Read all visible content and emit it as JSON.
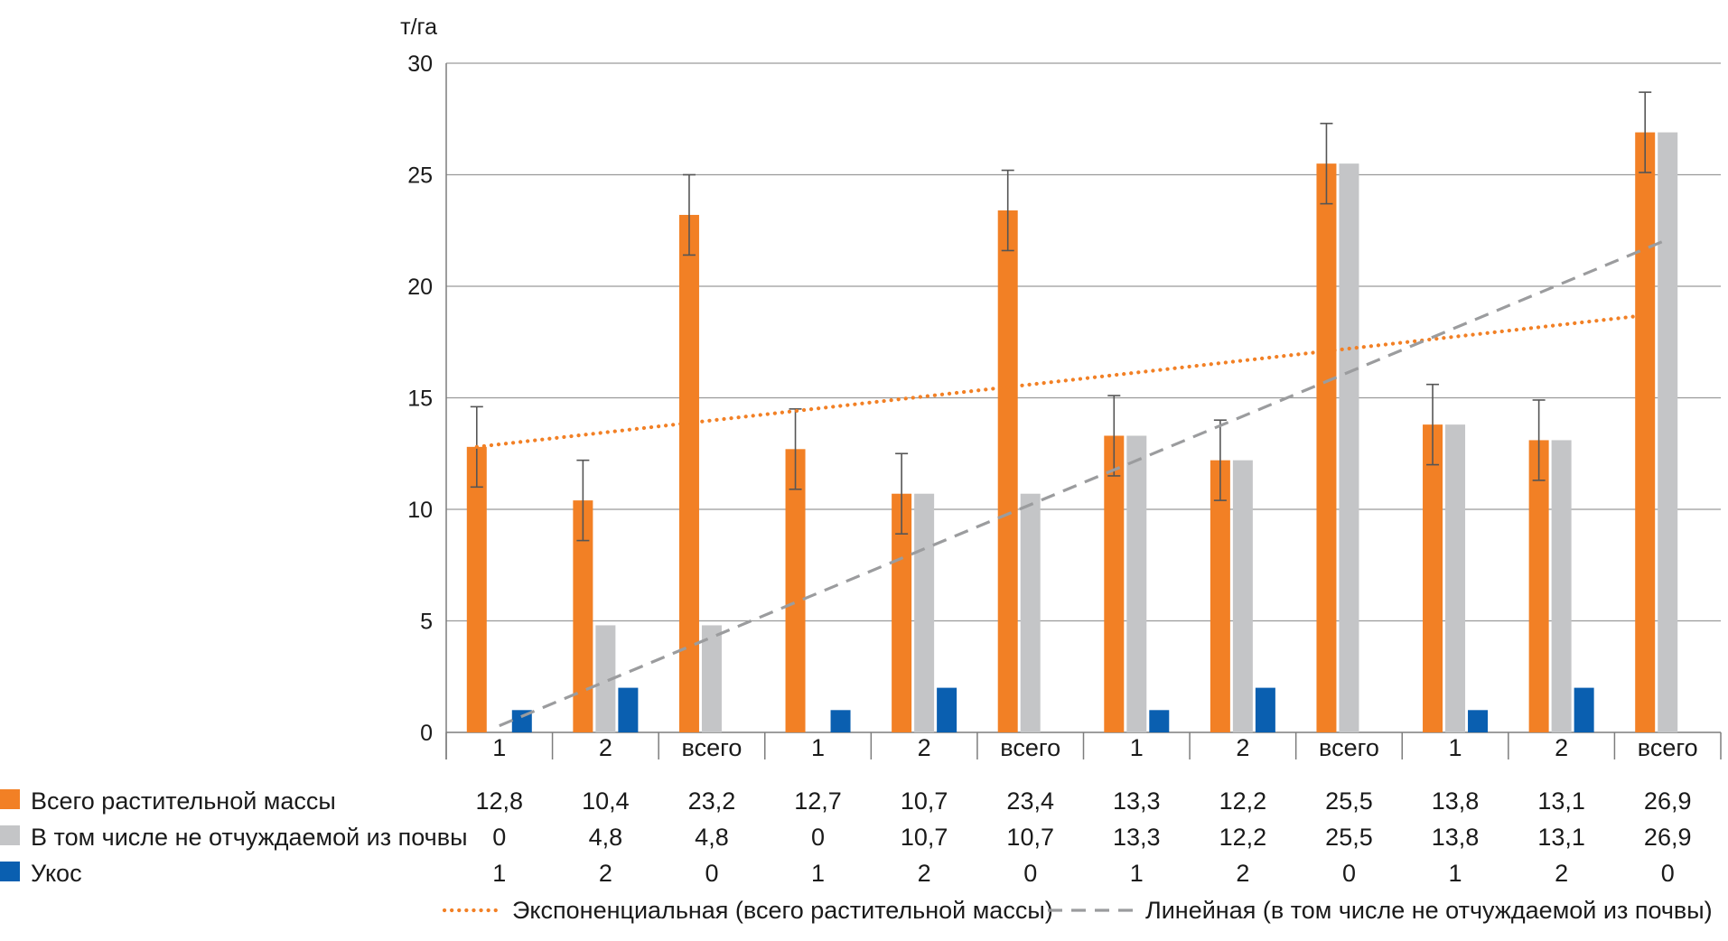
{
  "chart_data": {
    "type": "bar",
    "ylabel": "т/га",
    "ylim": [
      0,
      30
    ],
    "yticks": [
      0,
      5,
      10,
      15,
      20,
      25,
      30
    ],
    "grid": true,
    "categories": [
      "1",
      "2",
      "всего",
      "1",
      "2",
      "всего",
      "1",
      "2",
      "всего",
      "1",
      "2",
      "всего"
    ],
    "series": [
      {
        "name": "Всего растительной массы",
        "color": "#f28025",
        "values": [
          12.8,
          10.4,
          23.2,
          12.7,
          10.7,
          23.4,
          13.3,
          12.2,
          25.5,
          13.8,
          13.1,
          26.9
        ],
        "labels": [
          "12,8",
          "10,4",
          "23,2",
          "12,7",
          "10,7",
          "23,4",
          "13,3",
          "12,2",
          "25,5",
          "13,8",
          "13,1",
          "26,9"
        ],
        "error": [
          1.8,
          1.8,
          1.8,
          1.8,
          1.8,
          1.8,
          1.8,
          1.8,
          1.8,
          1.8,
          1.8,
          1.8
        ]
      },
      {
        "name": "В том числе не отчуждаемой из почвы",
        "color": "#c4c5c7",
        "values": [
          0,
          4.8,
          4.8,
          0,
          10.7,
          10.7,
          13.3,
          12.2,
          25.5,
          13.8,
          13.1,
          26.9
        ],
        "labels": [
          "0",
          "4,8",
          "4,8",
          "0",
          "10,7",
          "10,7",
          "13,3",
          "12,2",
          "25,5",
          "13,8",
          "13,1",
          "26,9"
        ]
      },
      {
        "name": "Укос",
        "color": "#0a5fb0",
        "values": [
          1,
          2,
          0,
          1,
          2,
          0,
          1,
          2,
          0,
          1,
          2,
          0
        ],
        "labels": [
          "1",
          "2",
          "0",
          "1",
          "2",
          "0",
          "1",
          "2",
          "0",
          "1",
          "2",
          "0"
        ]
      }
    ],
    "trendlines": [
      {
        "name": "Экспоненциальная (всего растительной массы)",
        "kind": "exponential",
        "style": "dotted",
        "color": "#f28025",
        "start": 12.8,
        "end": 18.7
      },
      {
        "name": "Линейная (в том числе не отчуждаемой из почвы)",
        "kind": "linear",
        "style": "dashed",
        "color": "#9b9c9e",
        "start": 0.3,
        "end": 22.1
      }
    ],
    "legend": "bottom"
  }
}
